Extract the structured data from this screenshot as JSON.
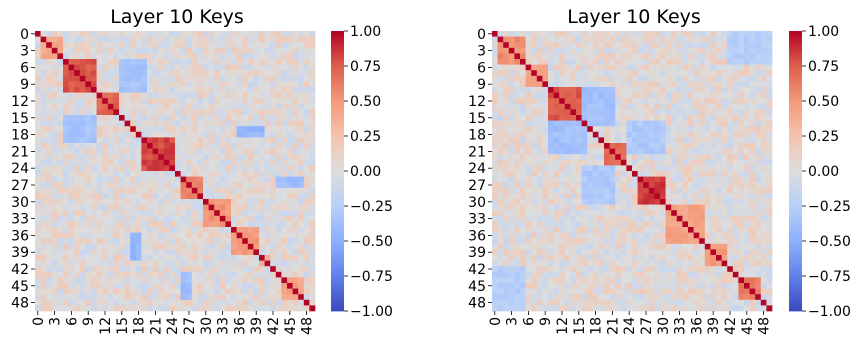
{
  "chart_data": [
    {
      "type": "heatmap",
      "title": "Layer 10 Keys",
      "n": 50,
      "colormap": "coolwarm",
      "vmin": -1.0,
      "vmax": 1.0,
      "row_tick_labels": [
        "0",
        "3",
        "6",
        "9",
        "12",
        "15",
        "18",
        "21",
        "24",
        "27",
        "30",
        "33",
        "36",
        "39",
        "42",
        "45",
        "48"
      ],
      "col_tick_labels": [
        "0",
        "3",
        "6",
        "9",
        "12",
        "15",
        "18",
        "21",
        "24",
        "27",
        "30",
        "33",
        "36",
        "39",
        "42",
        "45",
        "48"
      ],
      "colorbar_ticks": [
        "1.00",
        "0.75",
        "0.50",
        "0.25",
        "0.00",
        "−0.25",
        "−0.50",
        "−0.75",
        "−1.00"
      ],
      "blocks": [
        {
          "range": [
            1,
            4
          ],
          "value": 0.4
        },
        {
          "range": [
            5,
            10
          ],
          "value": 0.78
        },
        {
          "range": [
            11,
            14
          ],
          "value": 0.72
        },
        {
          "range": [
            19,
            24
          ],
          "value": 0.82
        },
        {
          "range": [
            26,
            29
          ],
          "value": 0.62
        },
        {
          "range": [
            30,
            34
          ],
          "value": 0.52
        },
        {
          "range": [
            35,
            39
          ],
          "value": 0.48
        },
        {
          "range": [
            40,
            41
          ],
          "value": 0.42
        },
        {
          "range": [
            44,
            47
          ],
          "value": 0.45
        }
      ],
      "negative_blocks": [
        {
          "rows": [
            5,
            10
          ],
          "cols": [
            15,
            19
          ],
          "value": -0.35
        },
        {
          "rows": [
            15,
            19
          ],
          "cols": [
            5,
            10
          ],
          "value": -0.35
        },
        {
          "rows": [
            36,
            40
          ],
          "cols": [
            17,
            18
          ],
          "value": -0.45
        },
        {
          "rows": [
            43,
            47
          ],
          "cols": [
            26,
            27
          ],
          "value": -0.4
        }
      ]
    },
    {
      "type": "heatmap",
      "title": "Layer 10 Keys",
      "n": 50,
      "colormap": "coolwarm",
      "vmin": -1.0,
      "vmax": 1.0,
      "row_tick_labels": [
        "0",
        "3",
        "6",
        "9",
        "12",
        "15",
        "18",
        "21",
        "24",
        "27",
        "30",
        "33",
        "36",
        "39",
        "42",
        "45",
        "48"
      ],
      "col_tick_labels": [
        "0",
        "3",
        "6",
        "9",
        "12",
        "15",
        "18",
        "21",
        "24",
        "27",
        "30",
        "33",
        "36",
        "39",
        "42",
        "45",
        "48"
      ],
      "colorbar_ticks": [
        "1.00",
        "0.75",
        "0.50",
        "0.25",
        "0.00",
        "−0.25",
        "−0.50",
        "−0.75",
        "−1.00"
      ],
      "blocks": [
        {
          "range": [
            1,
            5
          ],
          "value": 0.55
        },
        {
          "range": [
            6,
            9
          ],
          "value": 0.45
        },
        {
          "range": [
            10,
            16
          ],
          "value": 0.76
        },
        {
          "range": [
            20,
            23
          ],
          "value": 0.7
        },
        {
          "range": [
            26,
            30
          ],
          "value": 0.85
        },
        {
          "range": [
            31,
            37
          ],
          "value": 0.45
        },
        {
          "range": [
            38,
            41
          ],
          "value": 0.5
        },
        {
          "range": [
            44,
            47
          ],
          "value": 0.62
        }
      ],
      "negative_blocks": [
        {
          "rows": [
            10,
            16
          ],
          "cols": [
            16,
            21
          ],
          "value": -0.38
        },
        {
          "rows": [
            16,
            21
          ],
          "cols": [
            10,
            16
          ],
          "value": -0.38
        },
        {
          "rows": [
            24,
            30
          ],
          "cols": [
            16,
            21
          ],
          "value": -0.3
        },
        {
          "rows": [
            42,
            49
          ],
          "cols": [
            0,
            5
          ],
          "value": -0.25
        }
      ]
    }
  ]
}
